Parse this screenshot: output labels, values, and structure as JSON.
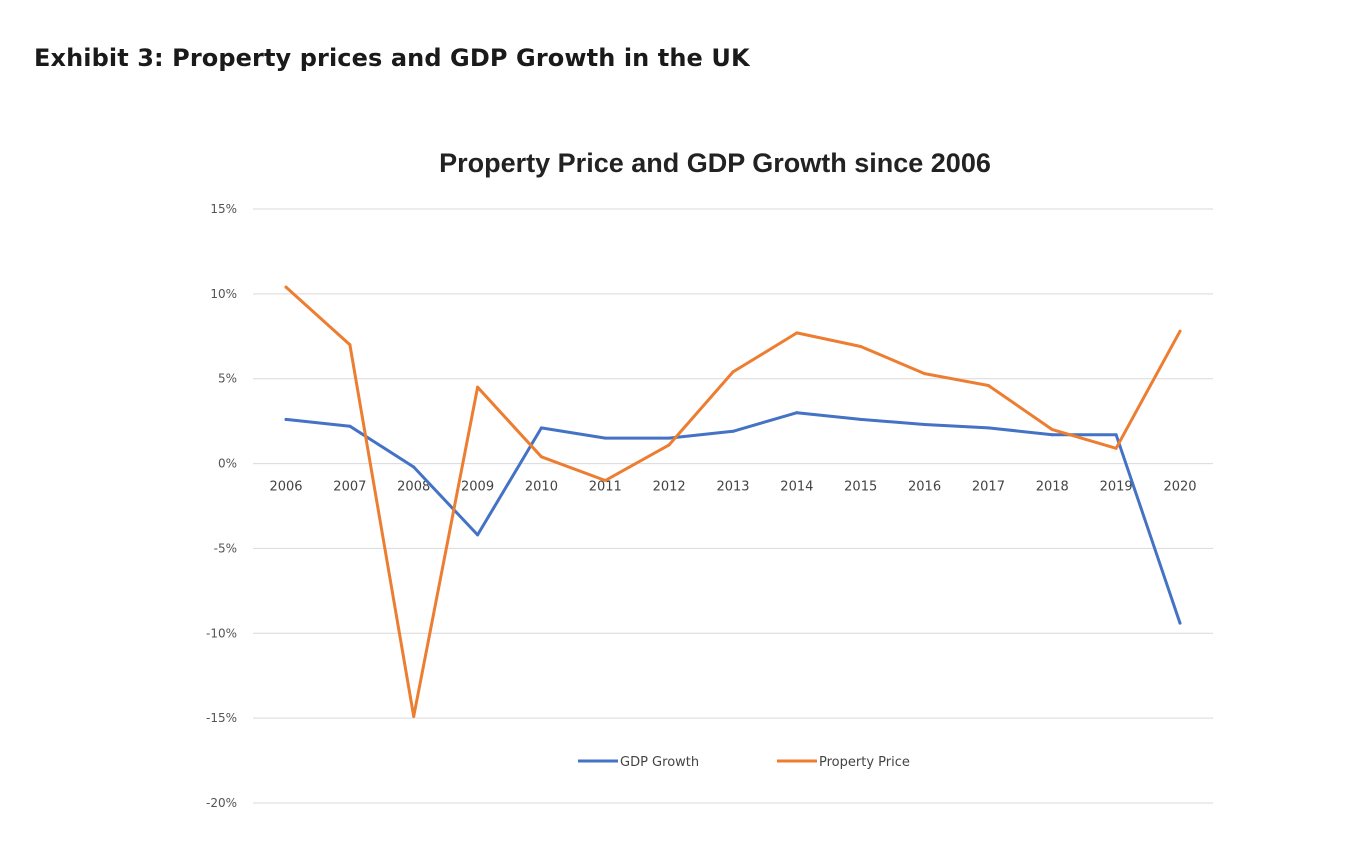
{
  "exhibit": {
    "title": "Exhibit 3: Property prices and GDP Growth in the UK"
  },
  "colors": {
    "gdp": "#4472c4",
    "property": "#ed7d31",
    "grid": "#d9d9d9"
  },
  "chart_data": {
    "type": "line",
    "title": "Property Price and GDP Growth since 2006",
    "xlabel": "",
    "ylabel": "",
    "categories": [
      "2006",
      "2007",
      "2008",
      "2009",
      "2010",
      "2011",
      "2012",
      "2013",
      "2014",
      "2015",
      "2016",
      "2017",
      "2018",
      "2019",
      "2020"
    ],
    "ylim": [
      -20,
      15
    ],
    "yticks": [
      15,
      10,
      5,
      0,
      -5,
      -10,
      -15,
      -20
    ],
    "ytick_labels": [
      "15%",
      "10%",
      "5%",
      "0%",
      "-5%",
      "-10%",
      "-15%",
      "-20%"
    ],
    "grid": true,
    "legend_position": "bottom",
    "series": [
      {
        "name": "GDP Growth",
        "color": "#4472c4",
        "values": [
          2.6,
          2.2,
          -0.2,
          -4.2,
          2.1,
          1.5,
          1.5,
          1.9,
          3.0,
          2.6,
          2.3,
          2.1,
          1.7,
          1.7,
          -9.4
        ]
      },
      {
        "name": "Property Price",
        "color": "#ed7d31",
        "values": [
          10.4,
          7.0,
          -14.9,
          4.5,
          0.4,
          -1.0,
          1.1,
          5.4,
          7.7,
          6.9,
          5.3,
          4.6,
          2.0,
          0.9,
          7.8
        ]
      }
    ]
  }
}
